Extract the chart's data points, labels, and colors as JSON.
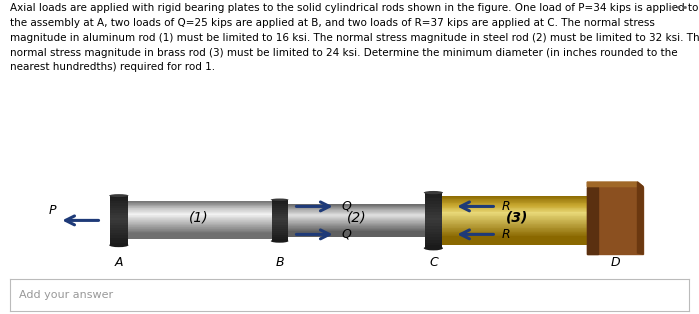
{
  "text_line1": "Axial loads are applied with rigid bearing plates to the solid cylindrical rods shown in the figure. One load of P=34 kips is applied to",
  "text_line2": "the assembly at A, two loads of Q=25 kips are applied at B, and two loads of R=37 kips are applied at C. The normal stress",
  "text_line3": "magnitude in aluminum rod (1) must be limited to 16 ksi. The normal stress magnitude in steel rod (2) must be limited to 32 ksi. The",
  "text_line4": "normal stress magnitude in brass rod (3) must be limited to 24 ksi. Determine the minimum diameter (in inches rounded to the",
  "text_line5": "nearest hundredths) required for rod 1.",
  "answer_placeholder": "Add your answer",
  "arrow_color": "#1e3a78",
  "dots_color": "#666666",
  "rod1_dark": "#707070",
  "rod1_mid": "#f2f2f2",
  "rod1_light": "#c8c8c8",
  "rod2_dark": "#606060",
  "rod2_mid": "#e0e0e0",
  "rod2_light": "#b0b0b0",
  "brass_dark": "#8a6800",
  "brass_mid": "#e8d878",
  "brass_light": "#c8a830",
  "plate_dark": "#1a1a1a",
  "plate_mid": "#3a3a3a",
  "plate_light": "#555555",
  "wall_front": "#5a3010",
  "wall_main": "#8b5020",
  "wall_top": "#a06828",
  "wall_right": "#6b3810"
}
